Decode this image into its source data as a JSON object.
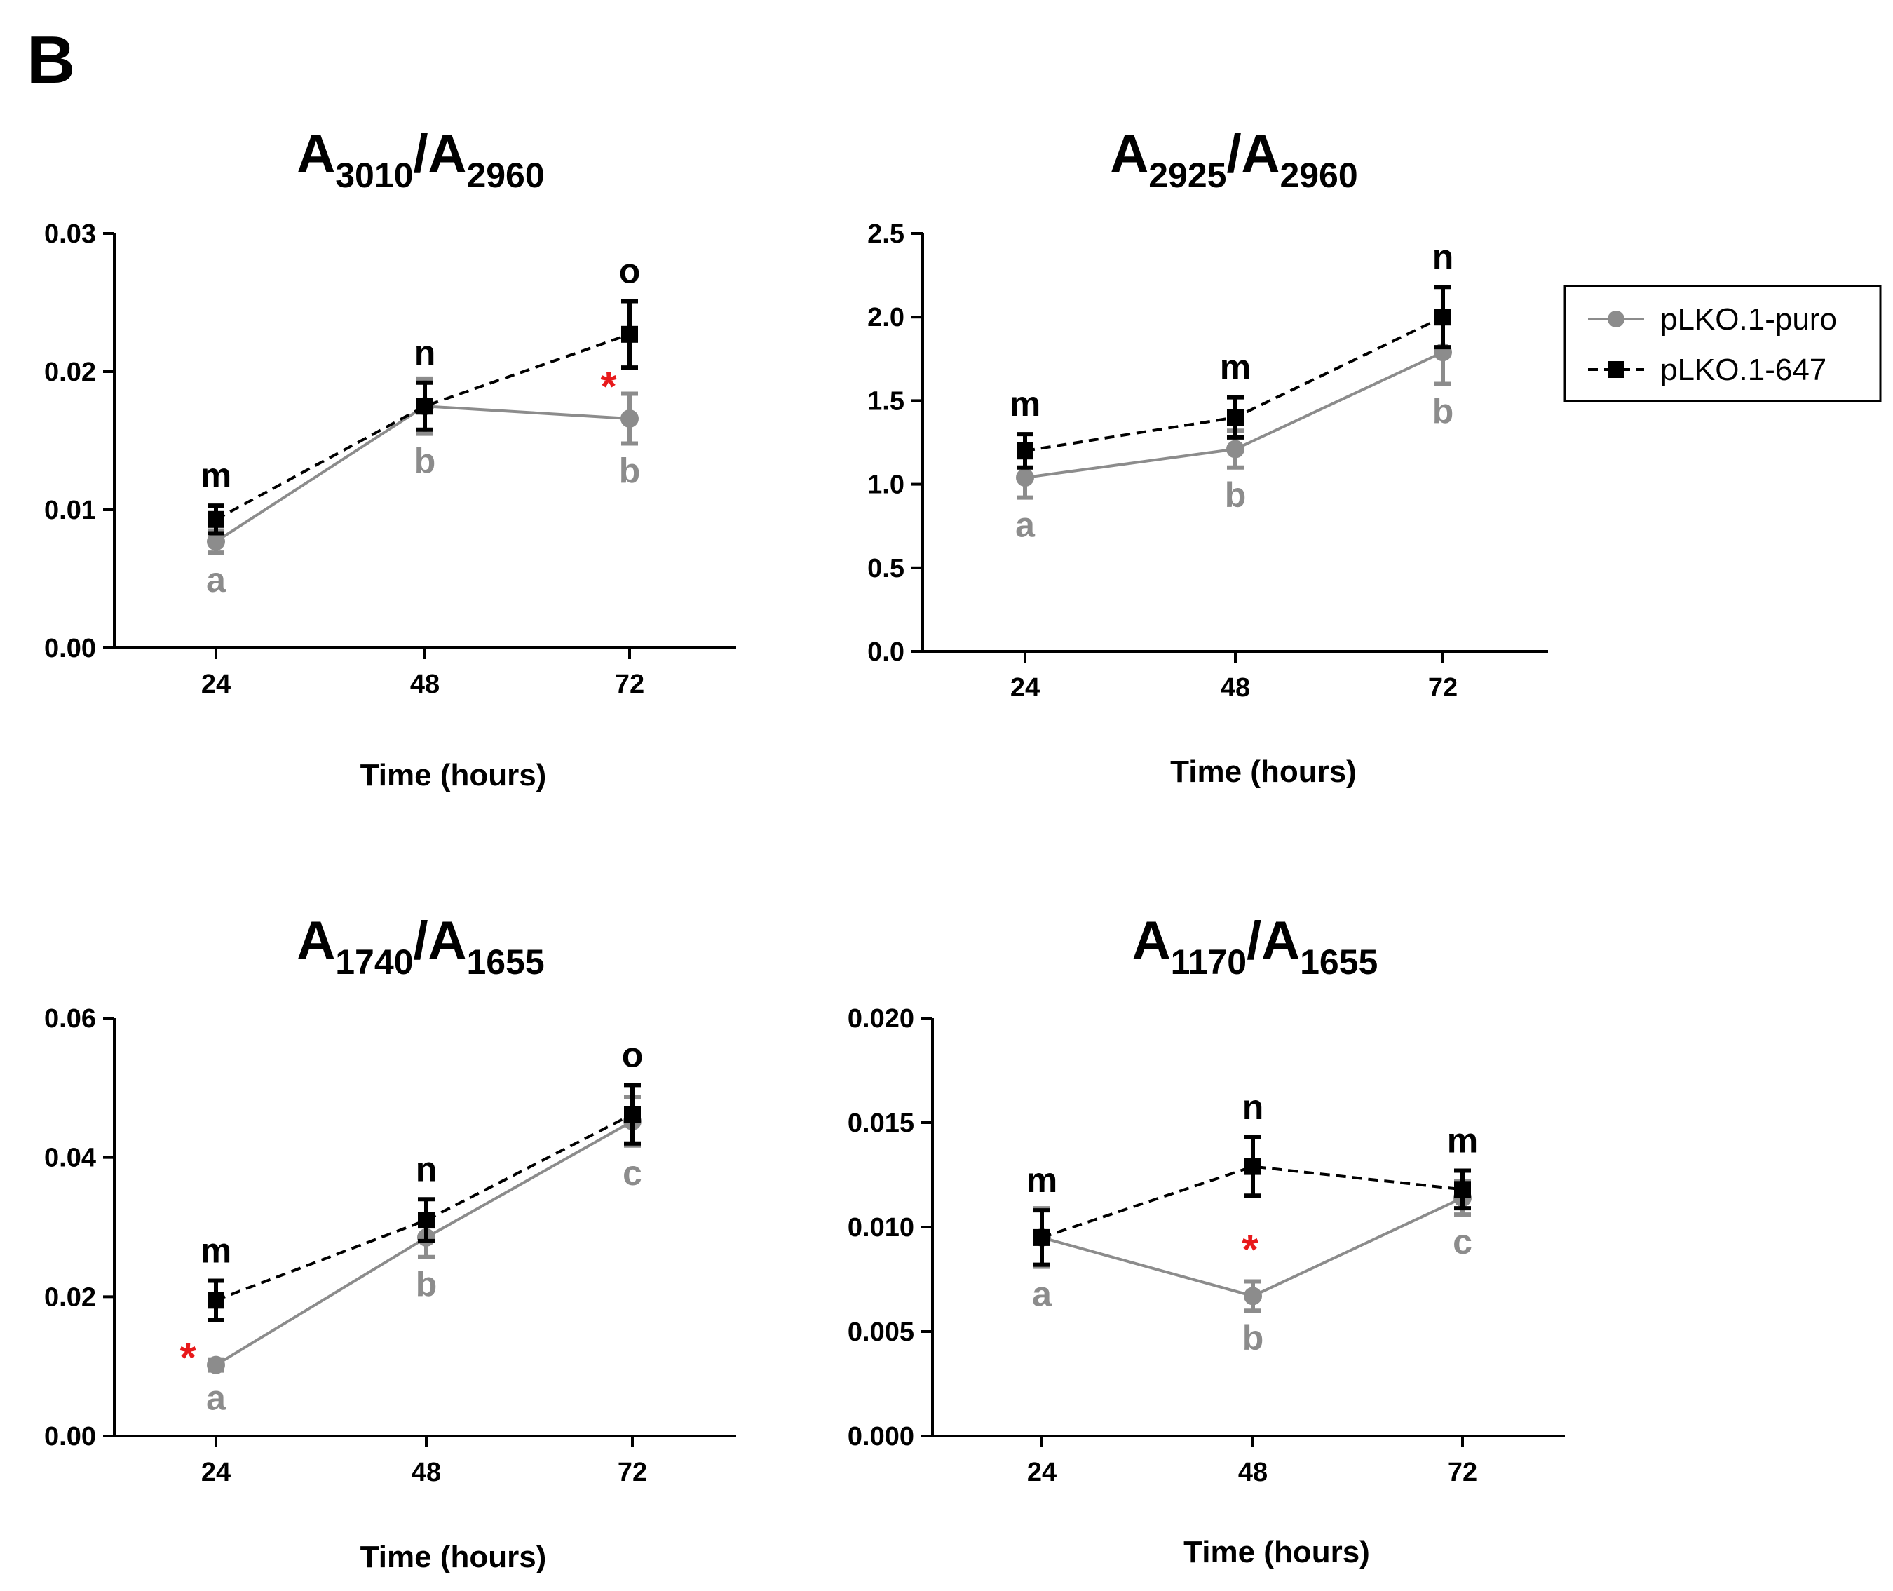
{
  "figure": {
    "panel_label": "B",
    "x_axis_label": "Time (hours)",
    "colors": {
      "puro": "#8c8c8c",
      "kd": "#000000",
      "star": "#e8191b",
      "axis": "#000000"
    }
  },
  "legend": {
    "entries": [
      {
        "name": "pLKO.1-puro",
        "style": "solid-circle-gray"
      },
      {
        "name": "pLKO.1-647",
        "style": "dashed-square-black"
      }
    ]
  },
  "chart_data": [
    {
      "type": "line",
      "title": {
        "main1": "A",
        "sub1": "3010",
        "main2": "/A",
        "sub2": "2960"
      },
      "xlabel": "Time (hours)",
      "categories": [
        "24",
        "48",
        "72"
      ],
      "ylim": [
        0,
        0.03
      ],
      "yticks": [
        "0.00",
        "0.01",
        "0.02",
        "0.03"
      ],
      "yticks_values": [
        0,
        0.01,
        0.02,
        0.03
      ],
      "series": [
        {
          "name": "pLKO.1-puro",
          "values": [
            0.0077,
            0.0175,
            0.0166
          ],
          "errors": [
            0.0008,
            0.002,
            0.0018
          ],
          "letters": [
            "a",
            "b",
            "b"
          ]
        },
        {
          "name": "pLKO.1-647",
          "values": [
            0.0093,
            0.0175,
            0.0227
          ],
          "errors": [
            0.001,
            0.0017,
            0.0024
          ],
          "letters": [
            "m",
            "n",
            "o"
          ]
        }
      ],
      "significance": [
        {
          "category": "72",
          "label": "*"
        }
      ]
    },
    {
      "type": "line",
      "title": {
        "main1": "A",
        "sub1": "2925",
        "main2": "/A",
        "sub2": "2960"
      },
      "xlabel": "Time (hours)",
      "categories": [
        "24",
        "48",
        "72"
      ],
      "ylim": [
        0,
        2.5
      ],
      "yticks": [
        "0.0",
        "0.5",
        "1.0",
        "1.5",
        "2.0",
        "2.5"
      ],
      "yticks_values": [
        0,
        0.5,
        1.0,
        1.5,
        2.0,
        2.5
      ],
      "series": [
        {
          "name": "pLKO.1-puro",
          "values": [
            1.04,
            1.21,
            1.79
          ],
          "errors": [
            0.12,
            0.11,
            0.19
          ],
          "letters": [
            "a",
            "b",
            "b"
          ]
        },
        {
          "name": "pLKO.1-647",
          "values": [
            1.2,
            1.4,
            2.0
          ],
          "errors": [
            0.1,
            0.12,
            0.18
          ],
          "letters": [
            "m",
            "m",
            "n"
          ]
        }
      ],
      "significance": []
    },
    {
      "type": "line",
      "title": {
        "main1": "A",
        "sub1": "1740",
        "main2": "/A",
        "sub2": "1655"
      },
      "xlabel": "Time (hours)",
      "categories": [
        "24",
        "48",
        "72"
      ],
      "ylim": [
        0,
        0.06
      ],
      "yticks": [
        "0.00",
        "0.02",
        "0.04",
        "0.06"
      ],
      "yticks_values": [
        0,
        0.02,
        0.04,
        0.06
      ],
      "series": [
        {
          "name": "pLKO.1-puro",
          "values": [
            0.0102,
            0.0285,
            0.0452
          ],
          "errors": [
            0.0008,
            0.0028,
            0.0035
          ],
          "letters": [
            "a",
            "b",
            "c"
          ]
        },
        {
          "name": "pLKO.1-647",
          "values": [
            0.0195,
            0.031,
            0.0462
          ],
          "errors": [
            0.0028,
            0.003,
            0.0042
          ],
          "letters": [
            "m",
            "n",
            "o"
          ]
        }
      ],
      "significance": [
        {
          "category": "24",
          "label": "*"
        }
      ]
    },
    {
      "type": "line",
      "title": {
        "main1": "A",
        "sub1": "1170",
        "main2": "/A",
        "sub2": "1655"
      },
      "xlabel": "Time (hours)",
      "categories": [
        "24",
        "48",
        "72"
      ],
      "ylim": [
        0,
        0.02
      ],
      "yticks": [
        "0.000",
        "0.005",
        "0.010",
        "0.015",
        "0.020"
      ],
      "yticks_values": [
        0,
        0.005,
        0.01,
        0.015,
        0.02
      ],
      "series": [
        {
          "name": "pLKO.1-puro",
          "values": [
            0.0095,
            0.0067,
            0.0114
          ],
          "errors": [
            0.0014,
            0.0007,
            0.0008
          ],
          "letters": [
            "a",
            "b",
            "c"
          ]
        },
        {
          "name": "pLKO.1-647",
          "values": [
            0.0095,
            0.0129,
            0.0118
          ],
          "errors": [
            0.0013,
            0.0014,
            0.0009
          ],
          "letters": [
            "m",
            "n",
            "m"
          ]
        }
      ],
      "significance": [
        {
          "category": "48",
          "label": "*"
        }
      ]
    }
  ]
}
